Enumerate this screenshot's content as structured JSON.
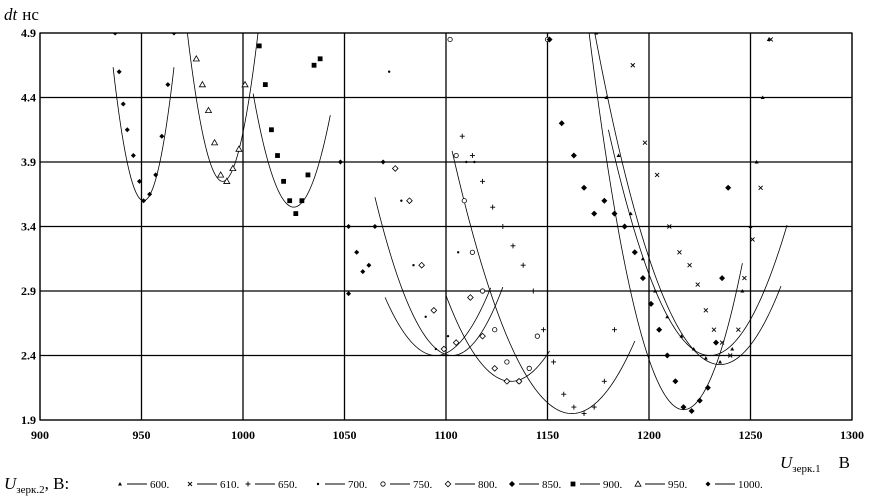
{
  "chart_data": {
    "type": "scatter",
    "ylabel": "dt,  нс",
    "ylabel_var": "dt",
    "ylabel_unit": "нс",
    "xlabel": "Uзерк.1,  В",
    "xlabel_var": "U",
    "xlabel_sub": "зерк.1",
    "xlabel_unit": "В",
    "xlim": [
      900,
      1300
    ],
    "ylim": [
      1.9,
      4.9
    ],
    "x_ticks": [
      900,
      950,
      1000,
      1050,
      1100,
      1150,
      1200,
      1250,
      1300
    ],
    "y_ticks": [
      1.9,
      2.4,
      2.9,
      3.4,
      3.9,
      4.4,
      4.9
    ],
    "x_tick_labels": [
      "900",
      "950",
      "1000",
      "1050",
      "1100",
      "1150",
      "1200",
      "1250",
      "1300"
    ],
    "y_tick_labels": [
      "1.9",
      "2.4",
      "2.9",
      "3.4",
      "3.9",
      "4.4",
      "4.9"
    ],
    "grid": true,
    "legend_title": "Uзерк.2,  В:",
    "legend_title_var": "U",
    "legend_title_sub": "зерк.2",
    "legend_title_unit": ",  В:",
    "legend_placement": "bottom",
    "series": [
      {
        "name": "600.",
        "marker": "triangle-small",
        "fit": {
          "xmin": 1169,
          "a": 0.000675,
          "b": 1235,
          "c": 2.33,
          "xmax": 1265
        },
        "points": [
          [
            1174,
            4.9
          ],
          [
            1179,
            4.4
          ],
          [
            1185,
            3.95
          ],
          [
            1191,
            3.5
          ],
          [
            1197,
            3.15
          ],
          [
            1203,
            2.9
          ],
          [
            1209,
            2.7
          ],
          [
            1216,
            2.55
          ],
          [
            1222,
            2.45
          ],
          [
            1228,
            2.38
          ],
          [
            1235,
            2.35
          ],
          [
            1241,
            2.45
          ],
          [
            1246,
            2.9
          ],
          [
            1250,
            3.4
          ],
          [
            1253,
            3.9
          ],
          [
            1256,
            4.4
          ],
          [
            1259,
            4.85
          ]
        ]
      },
      {
        "name": "610.",
        "marker": "cross",
        "fit": {
          "xmin": 1180,
          "a": 0.0007,
          "b": 1230,
          "c": 2.4,
          "xmax": 1268
        },
        "points": [
          [
            1192,
            4.65
          ],
          [
            1198,
            4.05
          ],
          [
            1204,
            3.8
          ],
          [
            1210,
            3.4
          ],
          [
            1215,
            3.2
          ],
          [
            1220,
            3.1
          ],
          [
            1224,
            2.95
          ],
          [
            1228,
            2.75
          ],
          [
            1232,
            2.6
          ],
          [
            1236,
            2.5
          ],
          [
            1240,
            2.4
          ],
          [
            1244,
            2.6
          ],
          [
            1247,
            3.0
          ],
          [
            1251,
            3.3
          ],
          [
            1255,
            3.7
          ],
          [
            1260,
            4.85
          ]
        ]
      },
      {
        "name": "650.",
        "marker": "plus",
        "fit": {
          "xmin": 1103,
          "a": 0.000585,
          "b": 1162,
          "c": 1.95,
          "xmax": 1193
        },
        "points": [
          [
            1108,
            4.1
          ],
          [
            1113,
            3.95
          ],
          [
            1118,
            3.75
          ],
          [
            1123,
            3.55
          ],
          [
            1128,
            3.4
          ],
          [
            1133,
            3.25
          ],
          [
            1138,
            3.1
          ],
          [
            1143,
            2.9
          ],
          [
            1148,
            2.6
          ],
          [
            1153,
            2.35
          ],
          [
            1158,
            2.1
          ],
          [
            1163,
            2.0
          ],
          [
            1168,
            1.95
          ],
          [
            1173,
            2.0
          ],
          [
            1178,
            2.2
          ],
          [
            1183,
            2.6
          ]
        ]
      },
      {
        "name": "700.",
        "marker": "dot",
        "fit": {
          "xmin": 1070,
          "a": 0.00072,
          "b": 1095,
          "c": 2.4,
          "xmax": 1122
        },
        "points": [
          [
            1072,
            4.6
          ],
          [
            1078,
            3.6
          ],
          [
            1084,
            3.1
          ],
          [
            1090,
            2.7
          ],
          [
            1095,
            2.45
          ],
          [
            1101,
            2.55
          ],
          [
            1106,
            3.2
          ],
          [
            1110,
            3.9
          ],
          [
            1114,
            3.9
          ]
        ]
      },
      {
        "name": "750.",
        "marker": "circle",
        "fit": {
          "xmin": 1100,
          "a": 0.00065,
          "b": 1132,
          "c": 2.2,
          "xmax": 1151
        },
        "points": [
          [
            1102,
            4.85
          ],
          [
            1105,
            3.95
          ],
          [
            1109,
            3.6
          ],
          [
            1113,
            3.2
          ],
          [
            1118,
            2.9
          ],
          [
            1124,
            2.6
          ],
          [
            1130,
            2.35
          ],
          [
            1136,
            2.2
          ],
          [
            1141,
            2.3
          ],
          [
            1145,
            2.55
          ],
          [
            1150,
            4.85
          ]
        ]
      },
      {
        "name": "800.",
        "marker": "diamond-open",
        "fit": {
          "xmin": 1065,
          "a": 0.00085,
          "b": 1103,
          "c": 2.4,
          "xmax": 1128
        },
        "points": [
          [
            1075,
            3.85
          ],
          [
            1082,
            3.6
          ],
          [
            1088,
            3.1
          ],
          [
            1094,
            2.75
          ],
          [
            1099,
            2.45
          ],
          [
            1105,
            2.5
          ],
          [
            1112,
            2.85
          ],
          [
            1118,
            2.55
          ],
          [
            1124,
            2.3
          ],
          [
            1130,
            2.2
          ],
          [
            1136,
            2.2
          ]
        ]
      },
      {
        "name": "850.",
        "marker": "diamond-filled",
        "fit": {
          "xmin": 1148,
          "a": 0.00135,
          "b": 1217,
          "c": 1.98,
          "xmax": 1246
        },
        "points": [
          [
            1151,
            4.85
          ],
          [
            1157,
            4.2
          ],
          [
            1163,
            3.95
          ],
          [
            1168,
            3.7
          ],
          [
            1173,
            3.5
          ],
          [
            1178,
            3.6
          ],
          [
            1183,
            3.5
          ],
          [
            1188,
            3.4
          ],
          [
            1193,
            3.2
          ],
          [
            1197,
            3.0
          ],
          [
            1201,
            2.8
          ],
          [
            1205,
            2.6
          ],
          [
            1209,
            2.4
          ],
          [
            1213,
            2.2
          ],
          [
            1217,
            2.0
          ],
          [
            1221,
            1.97
          ],
          [
            1225,
            2.05
          ],
          [
            1229,
            2.15
          ],
          [
            1233,
            2.5
          ],
          [
            1236,
            3.0
          ],
          [
            1239,
            3.7
          ]
        ]
      },
      {
        "name": "900.",
        "marker": "square",
        "fit": {
          "xmin": 1005,
          "a": 0.0022,
          "b": 1025,
          "c": 3.55,
          "xmax": 1043
        },
        "points": [
          [
            1008,
            4.8
          ],
          [
            1011,
            4.5
          ],
          [
            1014,
            4.15
          ],
          [
            1017,
            3.95
          ],
          [
            1020,
            3.75
          ],
          [
            1023,
            3.6
          ],
          [
            1026,
            3.5
          ],
          [
            1029,
            3.6
          ],
          [
            1032,
            3.8
          ],
          [
            1035,
            4.65
          ],
          [
            1038,
            4.7
          ]
        ]
      },
      {
        "name": "950.",
        "marker": "triangle-open",
        "fit": {
          "xmin": 972,
          "a": 0.0038,
          "b": 990,
          "c": 3.75,
          "xmax": 1008
        },
        "points": [
          [
            977,
            4.7
          ],
          [
            980,
            4.5
          ],
          [
            983,
            4.3
          ],
          [
            986,
            4.05
          ],
          [
            989,
            3.8
          ],
          [
            992,
            3.75
          ],
          [
            995,
            3.85
          ],
          [
            998,
            4.0
          ],
          [
            1001,
            4.5
          ]
        ]
      },
      {
        "name": "1000.",
        "marker": "diamond-small",
        "fit": {
          "xmin": 936,
          "a": 0.0046,
          "b": 951,
          "c": 3.6,
          "xmax": 966
        },
        "points": [
          [
            937,
            4.9
          ],
          [
            939,
            4.6
          ],
          [
            941,
            4.35
          ],
          [
            943,
            4.15
          ],
          [
            946,
            3.95
          ],
          [
            949,
            3.75
          ],
          [
            951,
            3.6
          ],
          [
            954,
            3.65
          ],
          [
            957,
            3.8
          ],
          [
            960,
            4.1
          ],
          [
            963,
            4.5
          ],
          [
            966,
            4.9
          ],
          [
            1048,
            3.9
          ],
          [
            1052,
            3.4
          ],
          [
            1056,
            3.2
          ],
          [
            1059,
            3.05
          ],
          [
            1062,
            3.1
          ],
          [
            1065,
            3.4
          ],
          [
            1069,
            3.9
          ],
          [
            1052,
            2.88
          ]
        ]
      }
    ]
  }
}
